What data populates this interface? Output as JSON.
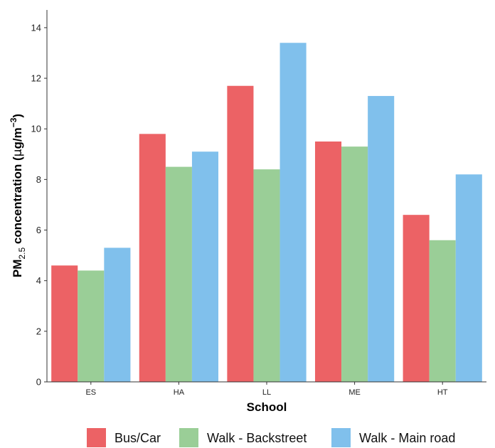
{
  "chart_data": {
    "type": "bar",
    "categories": [
      "ES",
      "HA",
      "LL",
      "ME",
      "HT"
    ],
    "series": [
      {
        "name": "Bus/Car",
        "color": "#EC6265",
        "values": [
          4.6,
          9.8,
          11.7,
          9.5,
          6.6
        ]
      },
      {
        "name": "Walk - Backstreet",
        "color": "#9ACE97",
        "values": [
          4.4,
          8.5,
          8.4,
          9.3,
          5.6
        ]
      },
      {
        "name": "Walk - Main road",
        "color": "#80C0EC",
        "values": [
          5.3,
          9.1,
          13.4,
          11.3,
          8.2
        ]
      }
    ],
    "xlabel": "School",
    "ylabel": {
      "prefix": "PM",
      "sub": "2.5",
      "middle": " concentration (",
      "mu": "μ",
      "unit": "g/m",
      "sup": "−3",
      "suffix": ")"
    },
    "ylim": [
      0,
      14.7
    ],
    "yticks": [
      "0",
      "2",
      "4",
      "6",
      "8",
      "10",
      "12",
      "14"
    ],
    "grid": false,
    "legend_position": "bottom"
  }
}
